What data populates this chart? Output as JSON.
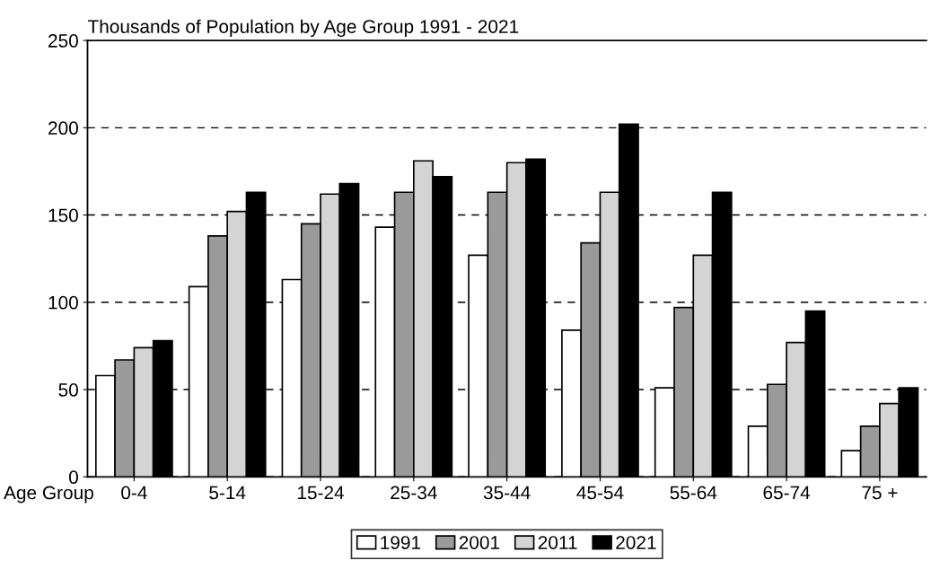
{
  "chart_data": {
    "type": "bar",
    "title": "Thousands of Population by Age Group 1991 - 2021",
    "xlabel": "Age Group",
    "categories": [
      "0-4",
      "5-14",
      "15-24",
      "25-34",
      "35-44",
      "45-54",
      "55-64",
      "65-74",
      "75 +"
    ],
    "series": [
      {
        "name": "1991",
        "color": "#ffffff",
        "values": [
          58,
          109,
          113,
          143,
          127,
          84,
          51,
          29,
          15
        ]
      },
      {
        "name": "2001",
        "color": "#9a9a9a",
        "values": [
          67,
          138,
          145,
          163,
          163,
          134,
          97,
          53,
          29
        ]
      },
      {
        "name": "2011",
        "color": "#d4d4d4",
        "values": [
          74,
          152,
          162,
          181,
          180,
          163,
          127,
          77,
          42
        ]
      },
      {
        "name": "2021",
        "color": "#000000",
        "values": [
          78,
          163,
          168,
          172,
          182,
          202,
          163,
          95,
          51
        ]
      }
    ],
    "ylim": [
      0,
      250
    ],
    "yticks": [
      0,
      50,
      100,
      150,
      200,
      250
    ],
    "grid": "y",
    "legend": "bottom"
  }
}
